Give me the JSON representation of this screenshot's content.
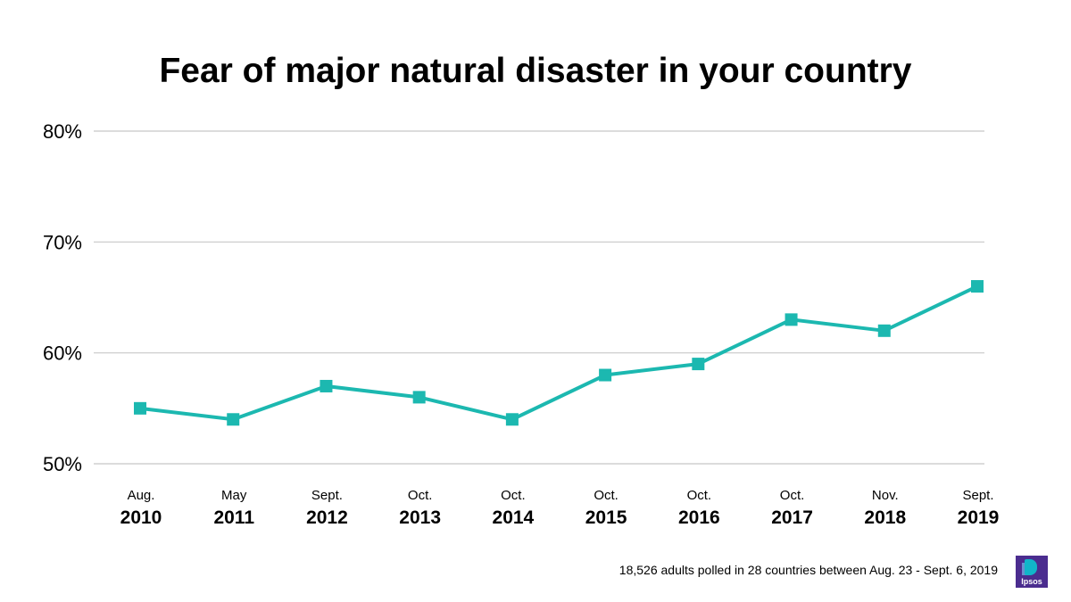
{
  "title": "Fear of major natural disaster in your country",
  "footnote": "18,526 adults polled in 28 countries between Aug. 23 - Sept. 6, 2019",
  "logo_text": "Ipsos",
  "colors": {
    "line": "#1cb8b0",
    "grid": "#c8c8c8",
    "logo_bg": "#4b2d8f"
  },
  "chart_data": {
    "type": "line",
    "title": "Fear of major natural disaster in your country",
    "xlabel": "",
    "ylabel": "",
    "ylim": [
      50,
      80
    ],
    "yticks": [
      50,
      60,
      70,
      80
    ],
    "ytick_labels": [
      "50%",
      "60%",
      "70%",
      "80%"
    ],
    "grid": true,
    "categories": [
      {
        "month": "Aug.",
        "year": "2010"
      },
      {
        "month": "May",
        "year": "2011"
      },
      {
        "month": "Sept.",
        "year": "2012"
      },
      {
        "month": "Oct.",
        "year": "2013"
      },
      {
        "month": "Oct.",
        "year": "2014"
      },
      {
        "month": "Oct.",
        "year": "2015"
      },
      {
        "month": "Oct.",
        "year": "2016"
      },
      {
        "month": "Oct.",
        "year": "2017"
      },
      {
        "month": "Nov.",
        "year": "2018"
      },
      {
        "month": "Sept.",
        "year": "2019"
      }
    ],
    "series": [
      {
        "name": "Fear of major natural disaster",
        "values": [
          55,
          54,
          57,
          56,
          54,
          58,
          59,
          63,
          62,
          66
        ]
      }
    ]
  }
}
